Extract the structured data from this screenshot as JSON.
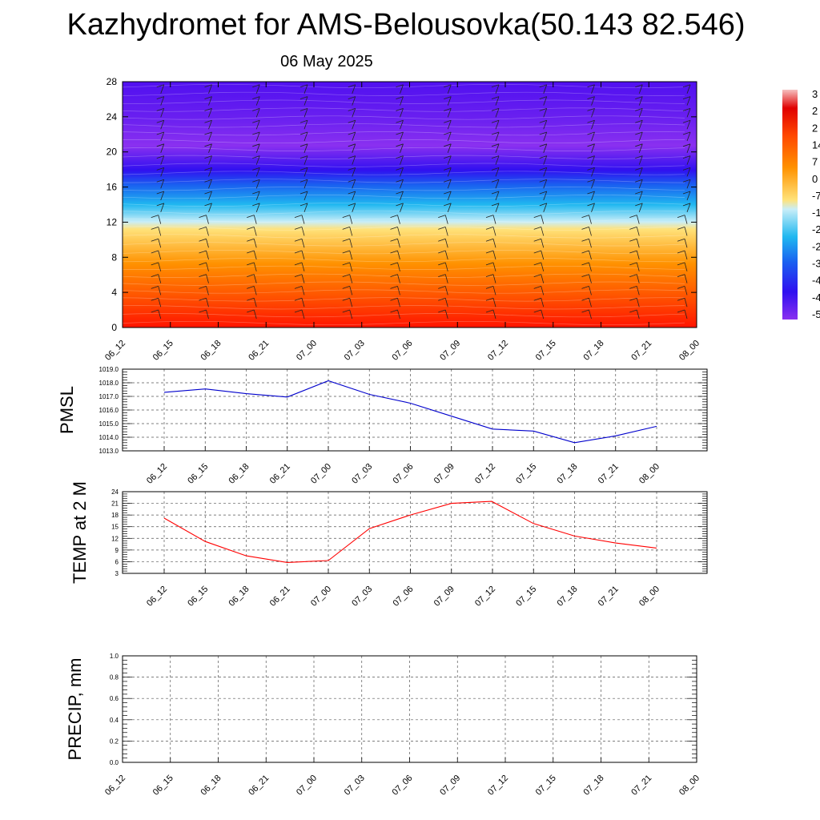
{
  "header": {
    "title": "Kazhydromet for AMS-Belousovka(50.143 82.546)",
    "subtitle": "06 May 2025"
  },
  "time_labels": [
    "06_12",
    "06_15",
    "06_18",
    "06_21",
    "07_00",
    "07_03",
    "07_06",
    "07_09",
    "07_12",
    "07_15",
    "07_18",
    "07_21",
    "08_00"
  ],
  "chart_data": [
    {
      "type": "heatmap",
      "title": "",
      "xlabel": "",
      "ylabel": "",
      "categories": [
        "06_12",
        "06_15",
        "06_18",
        "06_21",
        "07_00",
        "07_03",
        "07_06",
        "07_09",
        "07_12",
        "07_15",
        "07_18",
        "07_21",
        "08_00"
      ],
      "y_ticks": [
        0,
        4,
        8,
        12,
        16,
        20,
        24,
        28
      ],
      "ylim": [
        0,
        28
      ],
      "colorbar_labels": [
        "3",
        "2",
        "2",
        "14",
        "7",
        "0",
        "-7",
        "-1",
        "-2",
        "-2",
        "-3",
        "-4",
        "-4",
        "-5"
      ],
      "colormap": [
        "#ff0000",
        "#ff5a00",
        "#ffa000",
        "#ffe27a",
        "#b8e8f8",
        "#20b8f0",
        "#1a5cf0",
        "#2a10f0",
        "#7a20f0"
      ],
      "wind_barbs": true
    },
    {
      "type": "line",
      "ylabel": "PMSL",
      "categories": [
        "06_12",
        "06_15",
        "06_18",
        "06_21",
        "07_00",
        "07_03",
        "07_06",
        "07_09",
        "07_12",
        "07_15",
        "07_18",
        "07_21",
        "08_00"
      ],
      "y_ticks": [
        "1013.0",
        "1014.0",
        "1015.0",
        "1016.0",
        "1017.0",
        "1018.0",
        "1019.0"
      ],
      "ylim": [
        1013,
        1019
      ],
      "grid": true,
      "series": [
        {
          "color": "#0000cc",
          "values": [
            1017.3,
            1017.55,
            1017.2,
            1016.95,
            1018.15,
            1017.15,
            1016.5,
            1015.55,
            1014.6,
            1014.45,
            1013.6,
            1014.1,
            1014.8
          ]
        }
      ]
    },
    {
      "type": "line",
      "ylabel": "TEMP at 2 M",
      "categories": [
        "06_12",
        "06_15",
        "06_18",
        "06_21",
        "07_00",
        "07_03",
        "07_06",
        "07_09",
        "07_12",
        "07_15",
        "07_18",
        "07_21",
        "08_00"
      ],
      "y_ticks": [
        "3",
        "6",
        "9",
        "12",
        "15",
        "18",
        "21",
        "24"
      ],
      "ylim": [
        3,
        24
      ],
      "grid": true,
      "series": [
        {
          "color": "#ff0000",
          "x": [
            0,
            1,
            2,
            3,
            4,
            5,
            6,
            7,
            7.98,
            9,
            10,
            11,
            12
          ],
          "values": [
            17.2,
            11.2,
            7.5,
            5.8,
            6.3,
            14.5,
            18.0,
            21.0,
            21.5,
            15.8,
            12.6,
            10.8,
            9.5
          ]
        }
      ]
    },
    {
      "type": "line",
      "ylabel": "PRECIP, mm",
      "categories": [
        "06_12",
        "06_15",
        "06_18",
        "06_21",
        "07_00",
        "07_03",
        "07_06",
        "07_09",
        "07_12",
        "07_15",
        "07_18",
        "07_21",
        "08_00"
      ],
      "y_ticks": [
        "0.0",
        "0.2",
        "0.4",
        "0.6",
        "0.8",
        "1.0"
      ],
      "ylim": [
        0,
        1
      ],
      "grid": true,
      "series": [
        {
          "color": "#006400",
          "values": [
            0,
            0,
            0,
            0,
            0,
            0,
            0,
            0,
            0,
            0,
            0,
            0,
            0
          ]
        }
      ]
    }
  ]
}
